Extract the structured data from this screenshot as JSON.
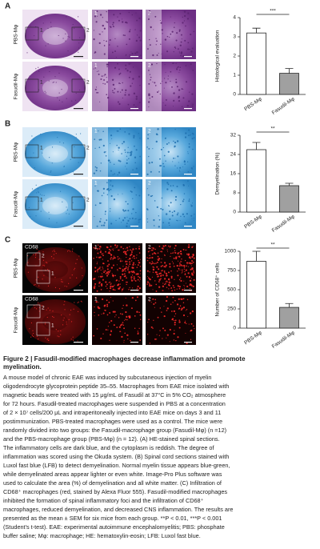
{
  "figure": {
    "panels": [
      {
        "letter": "A",
        "rows": [
          "PBS-Mφ",
          "Fasudil-Mφ"
        ],
        "insets": [
          "1",
          "2"
        ]
      },
      {
        "letter": "B",
        "rows": [
          "PBS-Mφ",
          "Fasudil-Mφ"
        ],
        "insets": [
          "1",
          "2"
        ]
      },
      {
        "letter": "C",
        "rows": [
          "PBS-Mφ",
          "Fasudil-Mφ"
        ],
        "insets": [
          "1",
          "2"
        ],
        "stain": "CD68"
      }
    ]
  },
  "chart_data": [
    {
      "type": "bar",
      "ylabel": "Histological evaluation",
      "categories": [
        "PBS-Mφ",
        "Fasudil-Mφ"
      ],
      "values": [
        3.2,
        1.1
      ],
      "errors": [
        0.25,
        0.25
      ],
      "colors": [
        "#ffffff",
        "#a0a0a0"
      ],
      "ylim": [
        0,
        4
      ],
      "yticks": [
        0,
        1,
        2,
        3,
        4
      ],
      "annotation": "***"
    },
    {
      "type": "bar",
      "ylabel": "Demyelination (%)",
      "categories": [
        "PBS-Mφ",
        "Fasudil-Mφ"
      ],
      "values": [
        26,
        11
      ],
      "errors": [
        3,
        1
      ],
      "colors": [
        "#ffffff",
        "#a0a0a0"
      ],
      "ylim": [
        0,
        32
      ],
      "yticks": [
        0,
        8,
        16,
        24,
        32
      ],
      "annotation": "**"
    },
    {
      "type": "bar",
      "ylabel": "Number of CD68⁺ cells",
      "categories": [
        "PBS-Mφ",
        "Fasudil-Mφ"
      ],
      "values": [
        870,
        270
      ],
      "errors": [
        130,
        50
      ],
      "colors": [
        "#ffffff",
        "#a0a0a0"
      ],
      "ylim": [
        0,
        1000
      ],
      "yticks": [
        0,
        250,
        500,
        750,
        1000
      ],
      "annotation": "**"
    }
  ],
  "caption": {
    "title": [
      "Figure 2  |  Fasudil-modified macrophages decrease inflammation and promote",
      "myelination."
    ],
    "body": [
      "A mouse model of chronic EAE was induced by subcutaneous injection of myelin",
      "oligodendrocyte glycoprotein peptide 35–55. Macrophages from EAE mice isolated with",
      "magnetic beads were treated with 15 μg/mL of Fasudil at 37°C in 5% CO₂ atmosphere",
      "for 72 hours. Fasudil-treated macrophages were suspended in PBS at a concentration",
      "of 2 × 10⁷ cells/200 μL and intraperitoneally injected into EAE mice on days 3 and 11",
      "postimmunization. PBS-treated macrophages were used as a control. The mice were",
      "randomly divided into two groups: the Fasudil-macrophage group (Fasudil-Mφ) (n =12)",
      "and the PBS-macrophage group (PBS-Mφ) (n = 12). (A) HE-stained spinal sections.",
      "The inflammatory cells are dark blue, and the cytoplasm is reddish. The degree of",
      "inflammation was scored using the Okuda system. (B) Spinal cord sections stained with",
      "Luxol fast blue (LFB) to detect demyelination. Normal myelin tissue appears blue-green,",
      "while demyelinated areas appear lighter or even white. Image-Pro Plus software was",
      "used to calculate the area (%) of demyelination and all white matter. (C) Infiltration of",
      "CD68⁺ macrophages (red, stained by Alexa Fluor 555). Fasudil-modified macrophages",
      "inhibited the formation of spinal inflammatory foci and the infiltration of CD68⁺",
      "macrophages, reduced demyelination, and decreased CNS inflammation. The results are",
      "presented as the mean ± SEM for six mice from each group. **P < 0.01, ***P < 0.001",
      "(Student's t-test). EAE: experimental autoimmune encephalomyelitis; PBS: phosphate",
      "buffer saline; Mφ: macrophage; HE: hematoxylin-eosin; LFB: Luxol fast blue."
    ]
  }
}
